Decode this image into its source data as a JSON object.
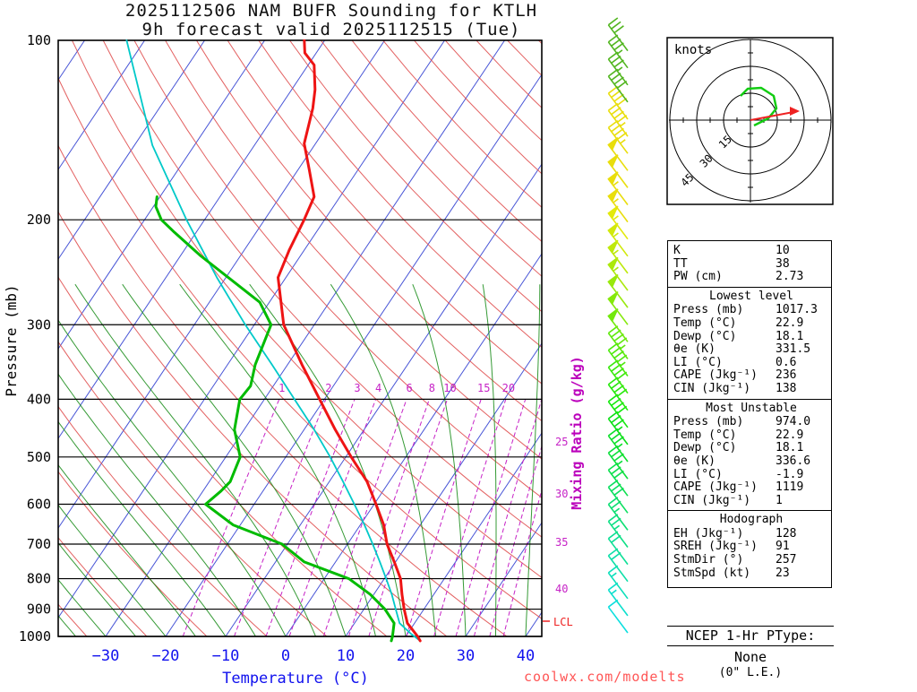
{
  "title": {
    "line1": "2025112506 NAM BUFR Sounding for KTLH",
    "line2": "9h forecast valid 2025112515 (Tue)"
  },
  "watermark": "coolwx.com/modelts",
  "axes": {
    "pressure_label": "Pressure (mb)",
    "temperature_label": "Temperature (°C)",
    "mixing_ratio_label": "Mixing Ratio (g/kg)",
    "lcl_label": "LCL"
  },
  "chart_data": {
    "type": "skewt-log-p sounding",
    "pressure_ticks_mb": [
      100,
      200,
      300,
      400,
      500,
      600,
      700,
      800,
      900,
      1000
    ],
    "temperature_ticks_c": [
      -30,
      -20,
      -10,
      0,
      10,
      20,
      30,
      40
    ],
    "mixing_ratio_lines_gkg": [
      1,
      2,
      3,
      4,
      6,
      8,
      10,
      15,
      20
    ],
    "mixing_ratio_right_labels_gkg": [
      25,
      30,
      35,
      40
    ],
    "temperature_profile_p_t": [
      [
        1017,
        22.9
      ],
      [
        1000,
        22.0
      ],
      [
        950,
        18.8
      ],
      [
        900,
        16.7
      ],
      [
        850,
        14.7
      ],
      [
        800,
        12.7
      ],
      [
        750,
        9.8
      ],
      [
        700,
        6.6
      ],
      [
        650,
        3.9
      ],
      [
        600,
        0.3
      ],
      [
        550,
        -3.7
      ],
      [
        500,
        -9.1
      ],
      [
        450,
        -14.8
      ],
      [
        400,
        -20.8
      ],
      [
        350,
        -27.6
      ],
      [
        300,
        -35.1
      ],
      [
        250,
        -41.3
      ],
      [
        225,
        -42.5
      ],
      [
        200,
        -43.4
      ],
      [
        183,
        -44.3
      ],
      [
        165,
        -48.1
      ],
      [
        149,
        -51.9
      ],
      [
        130,
        -54.4
      ],
      [
        121,
        -56.1
      ],
      [
        110,
        -59.0
      ],
      [
        105,
        -61.9
      ],
      [
        100,
        -63.4
      ]
    ],
    "dewpoint_profile_p_t": [
      [
        1017,
        18.1
      ],
      [
        1000,
        17.8
      ],
      [
        950,
        16.6
      ],
      [
        900,
        13.5
      ],
      [
        850,
        9.4
      ],
      [
        800,
        4.1
      ],
      [
        750,
        -5.2
      ],
      [
        700,
        -10.9
      ],
      [
        650,
        -21.2
      ],
      [
        600,
        -28.1
      ],
      [
        570,
        -27.0
      ],
      [
        550,
        -26.5
      ],
      [
        500,
        -27.6
      ],
      [
        450,
        -31.6
      ],
      [
        400,
        -34.1
      ],
      [
        380,
        -33.8
      ],
      [
        350,
        -35.4
      ],
      [
        300,
        -37.2
      ],
      [
        275,
        -41.6
      ],
      [
        250,
        -49.6
      ],
      [
        230,
        -56.6
      ],
      [
        210,
        -63.6
      ],
      [
        200,
        -67.2
      ],
      [
        190,
        -69.6
      ],
      [
        183,
        -70.5
      ]
    ],
    "parcel_profile_p_t": [
      [
        1017,
        22.9
      ],
      [
        990,
        20.6
      ],
      [
        950,
        17.5
      ],
      [
        900,
        15.3
      ],
      [
        850,
        13.0
      ],
      [
        800,
        10.3
      ],
      [
        750,
        7.4
      ],
      [
        700,
        4.2
      ],
      [
        650,
        0.7
      ],
      [
        600,
        -3.3
      ],
      [
        550,
        -7.7
      ],
      [
        500,
        -12.6
      ],
      [
        450,
        -18.3
      ],
      [
        400,
        -25.0
      ],
      [
        350,
        -32.6
      ],
      [
        300,
        -41.5
      ],
      [
        250,
        -51.5
      ],
      [
        200,
        -63.0
      ],
      [
        150,
        -77.0
      ],
      [
        100,
        -93.0
      ]
    ],
    "wind_profile_p_kt": [
      [
        1000,
        10
      ],
      [
        900,
        15
      ],
      [
        800,
        20
      ],
      [
        700,
        25
      ],
      [
        600,
        30
      ],
      [
        500,
        35
      ],
      [
        400,
        40
      ],
      [
        300,
        50
      ],
      [
        250,
        55
      ],
      [
        200,
        55
      ],
      [
        150,
        45
      ],
      [
        100,
        30
      ]
    ],
    "hodograph": {
      "units_label": "knots",
      "ring_labels_kt": [
        15,
        30,
        45
      ],
      "trace_uv_kt": [
        [
          2,
          -3
        ],
        [
          10,
          1
        ],
        [
          14.5,
          6.5
        ],
        [
          13,
          13.5
        ],
        [
          6,
          18
        ],
        [
          -1.5,
          17.5
        ],
        [
          -5.5,
          13.5
        ]
      ],
      "storm_motion_uv_kt": [
        24,
        4.5
      ]
    }
  },
  "indices": {
    "top": [
      [
        "K",
        "10"
      ],
      [
        "TT",
        "38"
      ],
      [
        "PW (cm)",
        "2.73"
      ]
    ],
    "sections": [
      {
        "title": "Lowest level",
        "rows": [
          [
            "Press (mb)",
            "1017.3"
          ],
          [
            "Temp (°C)",
            "22.9"
          ],
          [
            "Dewp (°C)",
            "18.1"
          ],
          [
            "θe (K)",
            "331.5"
          ],
          [
            "LI (°C)",
            "0.6"
          ],
          [
            "CAPE (Jkg⁻¹)",
            "236"
          ],
          [
            "CIN (Jkg⁻¹)",
            "138"
          ]
        ]
      },
      {
        "title": "Most Unstable",
        "rows": [
          [
            "Press (mb)",
            "974.0"
          ],
          [
            "Temp (°C)",
            "22.9"
          ],
          [
            "Dewp (°C)",
            "18.1"
          ],
          [
            "θe (K)",
            "336.6"
          ],
          [
            "LI (°C)",
            "-1.9"
          ],
          [
            "CAPE (Jkg⁻¹)",
            "1119"
          ],
          [
            "CIN (Jkg⁻¹)",
            "1"
          ]
        ]
      },
      {
        "title": "Hodograph",
        "rows": [
          [
            "EH (Jkg⁻¹)",
            "128"
          ],
          [
            "SREH (Jkg⁻¹)",
            "91"
          ],
          [
            "StmDir (°)",
            "257"
          ],
          [
            "StmSpd (kt)",
            "23"
          ]
        ]
      }
    ]
  },
  "ptype": {
    "title": "NCEP 1-Hr PType:",
    "value": "None",
    "le": "(0\" L.E.)"
  }
}
